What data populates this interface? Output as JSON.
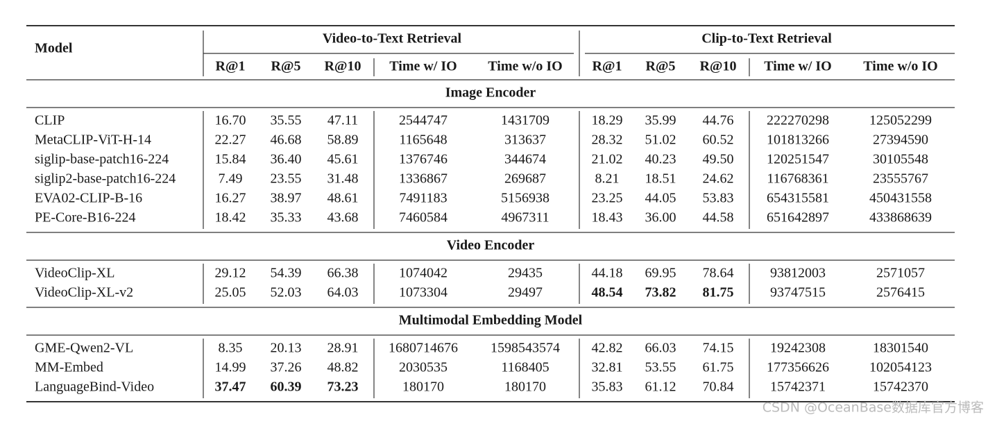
{
  "header": {
    "model": "Model",
    "groups": [
      "Video-to-Text Retrieval",
      "Clip-to-Text Retrieval"
    ],
    "columns": [
      "R@1",
      "R@5",
      "R@10",
      "Time w/ IO",
      "Time w/o IO",
      "R@1",
      "R@5",
      "R@10",
      "Time w/ IO",
      "Time w/o IO"
    ]
  },
  "sections": [
    {
      "title": "Image Encoder",
      "rows": [
        {
          "model": "CLIP",
          "cells": [
            "16.70",
            "35.55",
            "47.11",
            "2544747",
            "1431709",
            "18.29",
            "35.99",
            "44.76",
            "222270298",
            "125052299"
          ]
        },
        {
          "model": "MetaCLIP-ViT-H-14",
          "cells": [
            "22.27",
            "46.68",
            "58.89",
            "1165648",
            "313637",
            "28.32",
            "51.02",
            "60.52",
            "101813266",
            "27394590"
          ]
        },
        {
          "model": "siglip-base-patch16-224",
          "cells": [
            "15.84",
            "36.40",
            "45.61",
            "1376746",
            "344674",
            "21.02",
            "40.23",
            "49.50",
            "120251547",
            "30105548"
          ]
        },
        {
          "model": "siglip2-base-patch16-224",
          "cells": [
            "7.49",
            "23.55",
            "31.48",
            "1336867",
            "269687",
            "8.21",
            "18.51",
            "24.62",
            "116768361",
            "23555767"
          ]
        },
        {
          "model": "EVA02-CLIP-B-16",
          "cells": [
            "16.27",
            "38.97",
            "48.61",
            "7491183",
            "5156938",
            "23.25",
            "44.05",
            "53.83",
            "654315581",
            "450431558"
          ]
        },
        {
          "model": "PE-Core-B16-224",
          "cells": [
            "18.42",
            "35.33",
            "43.68",
            "7460584",
            "4967311",
            "18.43",
            "36.00",
            "44.58",
            "651642897",
            "433868639"
          ]
        }
      ]
    },
    {
      "title": "Video Encoder",
      "rows": [
        {
          "model": "VideoClip-XL",
          "cells": [
            "29.12",
            "54.39",
            "66.38",
            "1074042",
            "29435",
            "44.18",
            "69.95",
            "78.64",
            "93812003",
            "2571057"
          ]
        },
        {
          "model": "VideoClip-XL-v2",
          "cells": [
            "25.05",
            "52.03",
            "64.03",
            "1073304",
            "29497",
            {
              "text": "48.54",
              "bold": true
            },
            {
              "text": "73.82",
              "bold": true
            },
            {
              "text": "81.75",
              "bold": true
            },
            "93747515",
            "2576415"
          ]
        }
      ]
    },
    {
      "title": "Multimodal Embedding Model",
      "rows": [
        {
          "model": "GME-Qwen2-VL",
          "cells": [
            "8.35",
            "20.13",
            "28.91",
            "1680714676",
            "1598543574",
            "42.82",
            "66.03",
            "74.15",
            "19242308",
            "18301540"
          ]
        },
        {
          "model": "MM-Embed",
          "cells": [
            "14.99",
            "37.26",
            "48.82",
            "2030535",
            "1168405",
            "32.81",
            "53.55",
            "61.75",
            "177356626",
            "102054123"
          ]
        },
        {
          "model": "LanguageBind-Video",
          "cells": [
            {
              "text": "37.47",
              "bold": true
            },
            {
              "text": "60.39",
              "bold": true
            },
            {
              "text": "73.23",
              "bold": true
            },
            "180170",
            "180170",
            "35.83",
            "61.12",
            "70.84",
            "15742371",
            "15742370"
          ]
        }
      ]
    }
  ],
  "watermark": "CSDN @OceanBase数据库官方博客"
}
